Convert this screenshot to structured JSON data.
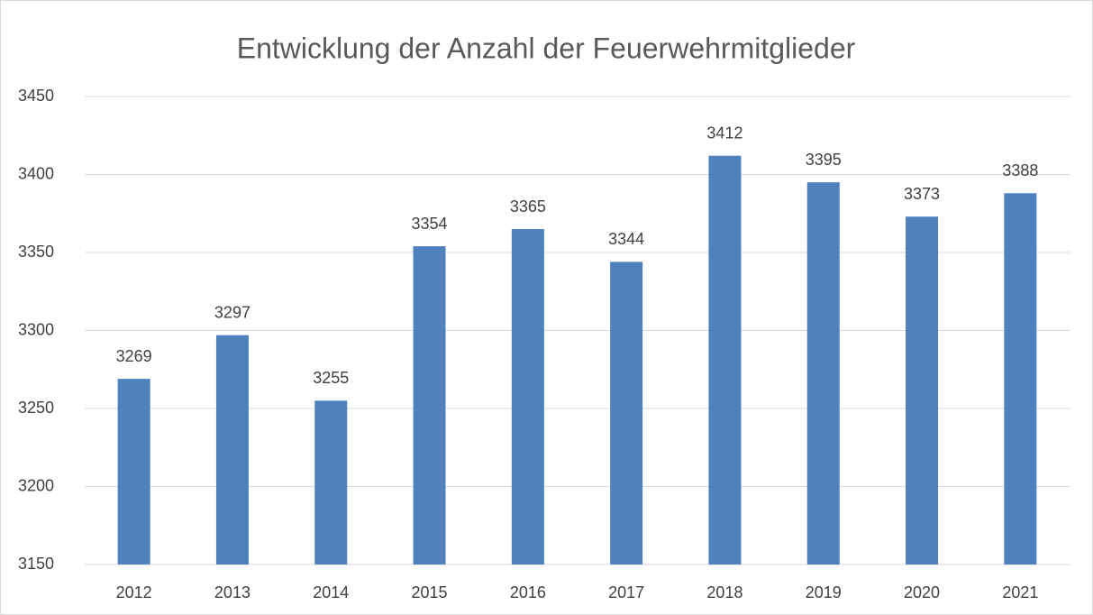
{
  "chart_data": {
    "type": "bar",
    "title": "Entwicklung der Anzahl der Feuerwehrmitglieder",
    "categories": [
      "2012",
      "2013",
      "2014",
      "2015",
      "2016",
      "2017",
      "2018",
      "2019",
      "2020",
      "2021"
    ],
    "values": [
      3269,
      3297,
      3255,
      3354,
      3365,
      3344,
      3412,
      3395,
      3373,
      3388
    ],
    "color": "#4f81bd",
    "ylim": [
      3150,
      3450
    ],
    "yticks": [
      3150,
      3200,
      3250,
      3300,
      3350,
      3400,
      3450
    ],
    "grid": true
  }
}
